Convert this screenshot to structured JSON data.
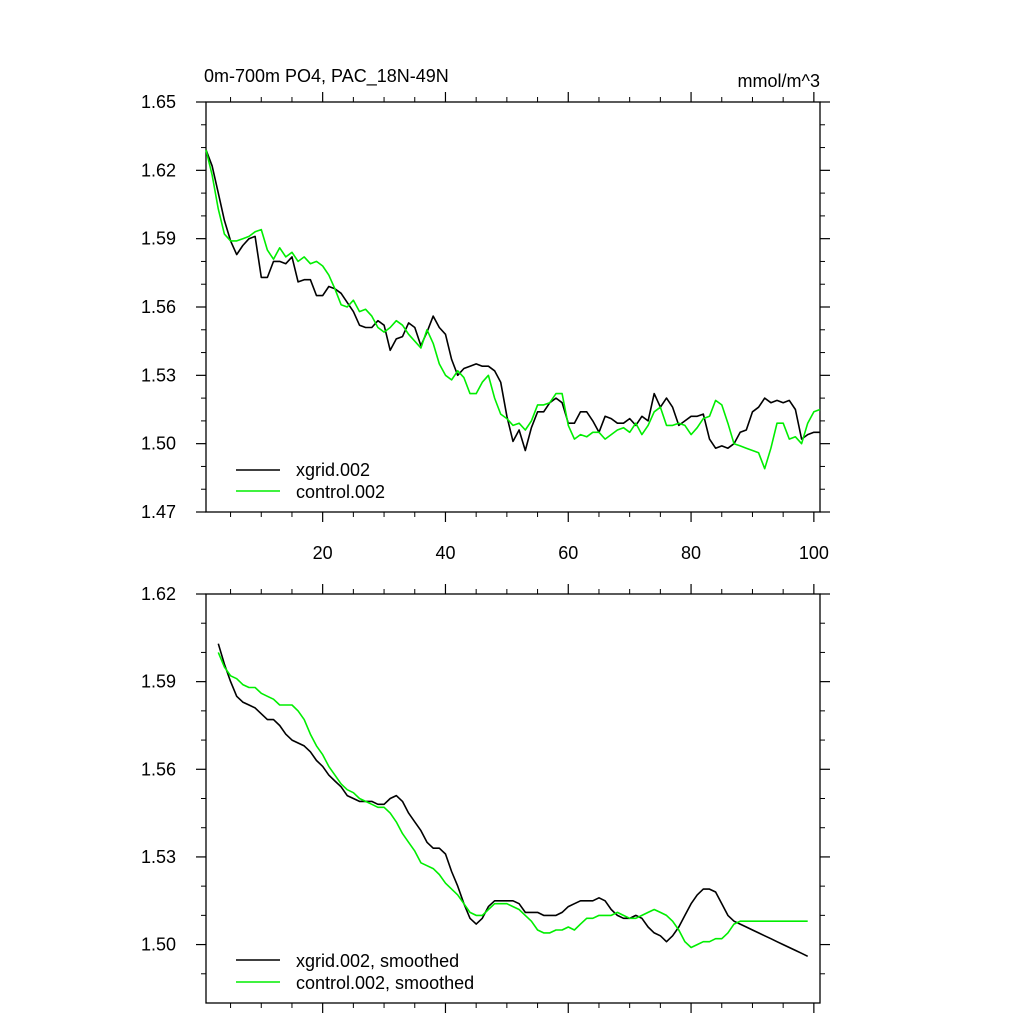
{
  "figure": {
    "title": "0m-700m PO4, PAC_18N-49N",
    "units": "mmol/m^3"
  },
  "chart_data": [
    {
      "type": "line",
      "title": "0m-700m PO4, PAC_18N-49N",
      "ylabel_right": "mmol/m^3",
      "xlim": [
        1,
        101
      ],
      "ylim": [
        1.47,
        1.65
      ],
      "xticks": [
        20,
        40,
        60,
        80,
        100
      ],
      "xtick_labels": [
        "20",
        "40",
        "60",
        "80",
        "100"
      ],
      "yticks": [
        1.47,
        1.5,
        1.53,
        1.56,
        1.59,
        1.62,
        1.65
      ],
      "ytick_labels": [
        "1.47",
        "1.50",
        "1.53",
        "1.56",
        "1.59",
        "1.62",
        "1.65"
      ],
      "legend_position": "bottom-left",
      "series": [
        {
          "name": "xgrid.002",
          "color": "#000000",
          "x": [
            1,
            2,
            3,
            4,
            5,
            6,
            7,
            8,
            9,
            10,
            11,
            12,
            13,
            14,
            15,
            16,
            17,
            18,
            19,
            20,
            21,
            22,
            23,
            24,
            25,
            26,
            27,
            28,
            29,
            30,
            31,
            32,
            33,
            34,
            35,
            36,
            37,
            38,
            39,
            40,
            41,
            42,
            43,
            44,
            45,
            46,
            47,
            48,
            49,
            50,
            51,
            52,
            53,
            54,
            55,
            56,
            57,
            58,
            59,
            60,
            61,
            62,
            63,
            64,
            65,
            66,
            67,
            68,
            69,
            70,
            71,
            72,
            73,
            74,
            75,
            76,
            77,
            78,
            79,
            80,
            81,
            82,
            83,
            84,
            85,
            86,
            87,
            88,
            89,
            90,
            91,
            92,
            93,
            94,
            95,
            96,
            97,
            98,
            99,
            100,
            101
          ],
          "y": [
            1.629,
            1.622,
            1.61,
            1.598,
            1.589,
            1.583,
            1.587,
            1.59,
            1.591,
            1.573,
            1.573,
            1.58,
            1.58,
            1.579,
            1.582,
            1.571,
            1.572,
            1.572,
            1.565,
            1.565,
            1.569,
            1.568,
            1.566,
            1.562,
            1.558,
            1.552,
            1.551,
            1.551,
            1.554,
            1.552,
            1.541,
            1.546,
            1.547,
            1.553,
            1.551,
            1.543,
            1.549,
            1.556,
            1.551,
            1.548,
            1.537,
            1.53,
            1.533,
            1.534,
            1.535,
            1.534,
            1.534,
            1.532,
            1.527,
            1.512,
            1.501,
            1.506,
            1.497,
            1.507,
            1.514,
            1.514,
            1.518,
            1.52,
            1.518,
            1.509,
            1.509,
            1.514,
            1.514,
            1.51,
            1.505,
            1.512,
            1.511,
            1.509,
            1.509,
            1.511,
            1.508,
            1.512,
            1.51,
            1.522,
            1.516,
            1.52,
            1.516,
            1.508,
            1.51,
            1.512,
            1.512,
            1.513,
            1.502,
            1.498,
            1.499,
            1.498,
            1.5,
            1.505,
            1.506,
            1.514,
            1.516,
            1.52,
            1.518,
            1.519,
            1.518,
            1.519,
            1.515,
            1.502,
            1.504,
            1.505,
            1.505
          ]
        },
        {
          "name": "control.002",
          "color": "#00ee00",
          "x": [
            1,
            2,
            3,
            4,
            5,
            6,
            7,
            8,
            9,
            10,
            11,
            12,
            13,
            14,
            15,
            16,
            17,
            18,
            19,
            20,
            21,
            22,
            23,
            24,
            25,
            26,
            27,
            28,
            29,
            30,
            31,
            32,
            33,
            34,
            35,
            36,
            37,
            38,
            39,
            40,
            41,
            42,
            43,
            44,
            45,
            46,
            47,
            48,
            49,
            50,
            51,
            52,
            53,
            54,
            55,
            56,
            57,
            58,
            59,
            60,
            61,
            62,
            63,
            64,
            65,
            66,
            67,
            68,
            69,
            70,
            71,
            72,
            73,
            74,
            75,
            76,
            77,
            78,
            79,
            80,
            81,
            82,
            83,
            84,
            85,
            86,
            87,
            88,
            89,
            90,
            91,
            92,
            93,
            94,
            95,
            96,
            97,
            98,
            99,
            100,
            101
          ],
          "y": [
            1.629,
            1.618,
            1.603,
            1.592,
            1.589,
            1.589,
            1.59,
            1.591,
            1.593,
            1.594,
            1.585,
            1.581,
            1.586,
            1.582,
            1.584,
            1.58,
            1.582,
            1.579,
            1.58,
            1.578,
            1.574,
            1.568,
            1.561,
            1.56,
            1.563,
            1.558,
            1.559,
            1.556,
            1.551,
            1.549,
            1.551,
            1.554,
            1.552,
            1.548,
            1.545,
            1.542,
            1.55,
            1.544,
            1.535,
            1.53,
            1.528,
            1.532,
            1.529,
            1.522,
            1.522,
            1.527,
            1.53,
            1.52,
            1.513,
            1.511,
            1.508,
            1.509,
            1.506,
            1.51,
            1.517,
            1.517,
            1.518,
            1.522,
            1.522,
            1.508,
            1.502,
            1.504,
            1.503,
            1.505,
            1.505,
            1.502,
            1.504,
            1.506,
            1.507,
            1.505,
            1.509,
            1.504,
            1.508,
            1.514,
            1.516,
            1.508,
            1.508,
            1.509,
            1.508,
            1.504,
            1.507,
            1.511,
            1.512,
            1.519,
            1.517,
            1.509,
            1.5,
            1.499,
            1.498,
            1.497,
            1.496,
            1.489,
            1.498,
            1.509,
            1.509,
            1.502,
            1.503,
            1.5,
            1.509,
            1.514,
            1.515
          ]
        }
      ]
    },
    {
      "type": "line",
      "xlim": [
        1,
        101
      ],
      "ylim": [
        1.48,
        1.62
      ],
      "xticks": [
        20,
        40,
        60,
        80,
        100
      ],
      "yticks": [
        1.5,
        1.53,
        1.56,
        1.59,
        1.62
      ],
      "ytick_labels": [
        "1.50",
        "1.53",
        "1.56",
        "1.59",
        "1.62"
      ],
      "legend_position": "bottom-left",
      "series": [
        {
          "name": "xgrid.002, smoothed",
          "color": "#000000",
          "x": [
            3,
            4,
            5,
            6,
            7,
            8,
            9,
            10,
            11,
            12,
            13,
            14,
            15,
            16,
            17,
            18,
            19,
            20,
            21,
            22,
            23,
            24,
            25,
            26,
            27,
            28,
            29,
            30,
            31,
            32,
            33,
            34,
            35,
            36,
            37,
            38,
            39,
            40,
            41,
            42,
            43,
            44,
            45,
            46,
            47,
            48,
            49,
            50,
            51,
            52,
            53,
            54,
            55,
            56,
            57,
            58,
            59,
            60,
            61,
            62,
            63,
            64,
            65,
            66,
            67,
            68,
            69,
            70,
            71,
            72,
            73,
            74,
            75,
            76,
            77,
            78,
            79,
            80,
            81,
            82,
            83,
            84,
            85,
            86,
            87,
            88,
            89,
            90,
            91,
            92,
            93,
            94,
            95,
            96,
            97,
            98,
            99
          ],
          "y": [
            1.603,
            1.596,
            1.59,
            1.585,
            1.583,
            1.582,
            1.581,
            1.579,
            1.577,
            1.577,
            1.575,
            1.572,
            1.57,
            1.569,
            1.568,
            1.566,
            1.563,
            1.561,
            1.558,
            1.556,
            1.554,
            1.551,
            1.55,
            1.549,
            1.549,
            1.549,
            1.548,
            1.548,
            1.55,
            1.551,
            1.549,
            1.545,
            1.542,
            1.539,
            1.535,
            1.533,
            1.533,
            1.531,
            1.525,
            1.52,
            1.514,
            1.509,
            1.507,
            1.509,
            1.513,
            1.515,
            1.515,
            1.515,
            1.515,
            1.514,
            1.511,
            1.511,
            1.511,
            1.51,
            1.51,
            1.51,
            1.511,
            1.513,
            1.514,
            1.515,
            1.515,
            1.515,
            1.516,
            1.515,
            1.512,
            1.51,
            1.509,
            1.509,
            1.51,
            1.509,
            1.506,
            1.504,
            1.503,
            1.501,
            1.503,
            1.506,
            1.51,
            1.514,
            1.517,
            1.519,
            1.519,
            1.518,
            1.514,
            1.51,
            1.508,
            1.507,
            1.506,
            1.505,
            1.504,
            1.503,
            1.502,
            1.501,
            1.5,
            1.499,
            1.498,
            1.497,
            1.496
          ]
        },
        {
          "name": "control.002, smoothed",
          "color": "#00ee00",
          "x": [
            3,
            4,
            5,
            6,
            7,
            8,
            9,
            10,
            11,
            12,
            13,
            14,
            15,
            16,
            17,
            18,
            19,
            20,
            21,
            22,
            23,
            24,
            25,
            26,
            27,
            28,
            29,
            30,
            31,
            32,
            33,
            34,
            35,
            36,
            37,
            38,
            39,
            40,
            41,
            42,
            43,
            44,
            45,
            46,
            47,
            48,
            49,
            50,
            51,
            52,
            53,
            54,
            55,
            56,
            57,
            58,
            59,
            60,
            61,
            62,
            63,
            64,
            65,
            66,
            67,
            68,
            69,
            70,
            71,
            72,
            73,
            74,
            75,
            76,
            77,
            78,
            79,
            80,
            81,
            82,
            83,
            84,
            85,
            86,
            87,
            88,
            89,
            90,
            91,
            92,
            93,
            94,
            95,
            96,
            97,
            98,
            99
          ],
          "y": [
            1.6,
            1.595,
            1.592,
            1.591,
            1.589,
            1.588,
            1.588,
            1.586,
            1.585,
            1.584,
            1.582,
            1.582,
            1.582,
            1.58,
            1.577,
            1.572,
            1.568,
            1.565,
            1.561,
            1.558,
            1.555,
            1.553,
            1.552,
            1.55,
            1.549,
            1.548,
            1.547,
            1.547,
            1.545,
            1.542,
            1.538,
            1.535,
            1.532,
            1.528,
            1.527,
            1.526,
            1.524,
            1.521,
            1.519,
            1.517,
            1.514,
            1.511,
            1.51,
            1.51,
            1.512,
            1.514,
            1.514,
            1.514,
            1.513,
            1.512,
            1.51,
            1.508,
            1.505,
            1.504,
            1.504,
            1.505,
            1.505,
            1.506,
            1.505,
            1.507,
            1.509,
            1.509,
            1.51,
            1.51,
            1.51,
            1.511,
            1.51,
            1.509,
            1.509,
            1.51,
            1.511,
            1.512,
            1.511,
            1.51,
            1.508,
            1.505,
            1.501,
            1.499,
            1.5,
            1.501,
            1.501,
            1.502,
            1.502,
            1.504,
            1.507,
            1.508,
            1.508,
            1.508,
            1.508,
            1.508,
            1.508,
            1.508,
            1.508,
            1.508,
            1.508,
            1.508,
            1.508
          ]
        }
      ]
    }
  ]
}
